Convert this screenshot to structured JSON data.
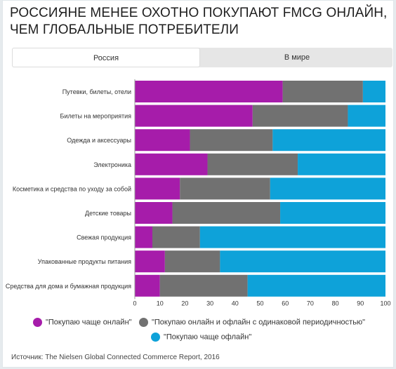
{
  "title": "РОССИЯНЕ МЕНЕЕ ОХОТНО ПОКУПАЮТ FMCG ОНЛАЙН, ЧЕМ ГЛОБАЛЬНЫЕ ПОТРЕБИТЕЛИ",
  "tabs": [
    {
      "label": "Россия",
      "active": true
    },
    {
      "label": "В мире",
      "active": false
    }
  ],
  "colors": {
    "online": "#a61caa",
    "both": "#717171",
    "offline": "#0ea2d9"
  },
  "source": "Источник: The Nielsen Global Connected Commerce Report, 2016",
  "chart_data": {
    "type": "bar",
    "orientation": "horizontal",
    "stacked": true,
    "categories": [
      "Путевки, билеты, отели",
      "Билеты на мероприятия",
      "Одежда и аксессуары",
      "Электроника",
      "Косметика и средства по уходу за собой",
      "Детские товары",
      "Свежая продукция",
      "Упакованные продукты питания",
      "Средства для дома и бумажная продукция"
    ],
    "series": [
      {
        "name": "\"Покупаю чаще онлайн\"",
        "color": "#a61caa",
        "values": [
          59,
          47,
          22,
          29,
          18,
          15,
          7,
          12,
          10
        ]
      },
      {
        "name": "\"Покупаю онлайн и офлайн с одинаковой периодичностью\"",
        "color": "#717171",
        "values": [
          32,
          38,
          33,
          36,
          36,
          43,
          19,
          22,
          35
        ]
      },
      {
        "name": "\"Покупаю чаще офлайн\"",
        "color": "#0ea2d9",
        "values": [
          12,
          16,
          46,
          36,
          47,
          43,
          75,
          67,
          56
        ]
      }
    ],
    "xlim": [
      0,
      100
    ],
    "xticks": [
      0,
      10,
      20,
      30,
      40,
      50,
      60,
      70,
      80,
      90,
      100
    ],
    "grid": false,
    "legend_position": "bottom"
  }
}
